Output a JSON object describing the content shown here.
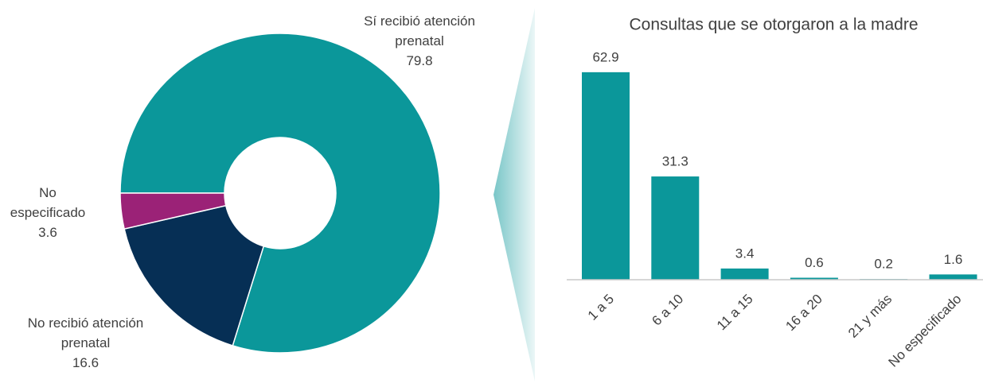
{
  "chart_data": [
    {
      "type": "donut",
      "categories": [
        "Sí recibió atención prenatal",
        "No recibió atención prenatal",
        "No especificado"
      ],
      "values": [
        79.8,
        16.6,
        3.6
      ],
      "colors": [
        "#0b979a",
        "#062f55",
        "#9b2277"
      ]
    },
    {
      "type": "bar",
      "title": "Consultas que se otorgaron a la madre",
      "categories": [
        "1 a 5",
        "6 a 10",
        "11 a 15",
        "16 a 20",
        "21 y más",
        "No especificado"
      ],
      "values": [
        62.9,
        31.3,
        3.4,
        0.6,
        0.2,
        1.6
      ],
      "color": "#0b979a",
      "ylim": [
        0,
        70
      ]
    }
  ]
}
